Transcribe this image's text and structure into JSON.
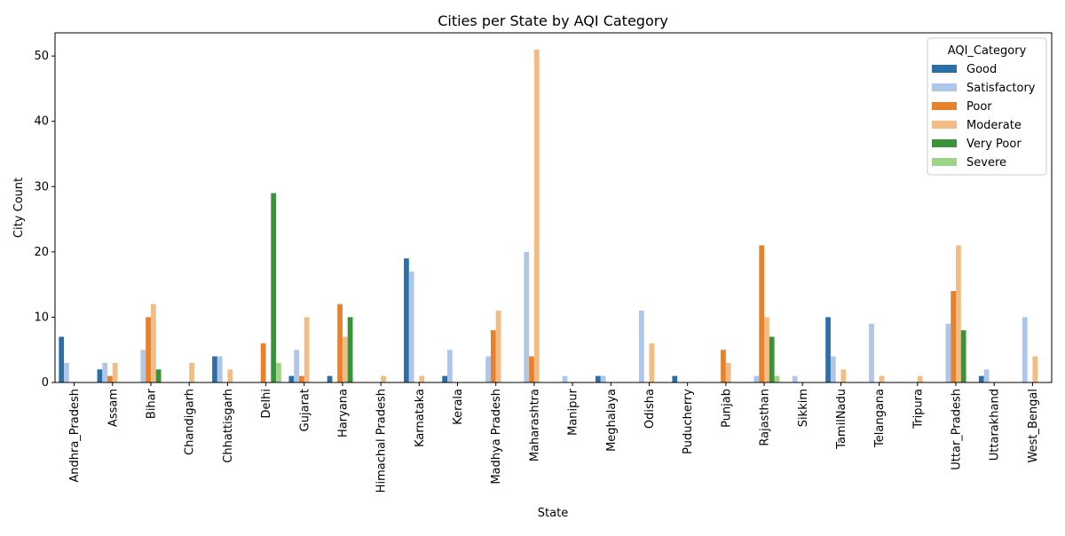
{
  "chart_data": {
    "type": "bar",
    "title": "Cities per State by AQI Category",
    "xlabel": "State",
    "ylabel": "City Count",
    "ylim": [
      0,
      53.55
    ],
    "yticks": [
      0,
      10,
      20,
      30,
      40,
      50
    ],
    "grid": false,
    "legend": {
      "title": "AQI_Category",
      "position": "top-right"
    },
    "categories": [
      "Andhra_Pradesh",
      "Assam",
      "Bihar",
      "Chandigarh",
      "Chhattisgarh",
      "Delhi",
      "Gujarat",
      "Haryana",
      "Himachal Pradesh",
      "Karnataka",
      "Kerala",
      "Madhya Pradesh",
      "Maharashtra",
      "Manipur",
      "Meghalaya",
      "Odisha",
      "Puducherry",
      "Punjab",
      "Rajasthan",
      "Sikkim",
      "TamilNadu",
      "Telangana",
      "Tripura",
      "Uttar_Pradesh",
      "Uttarakhand",
      "West_Bengal"
    ],
    "series": [
      {
        "name": "Good",
        "color": "#2c6fa6",
        "values": [
          7,
          2,
          0,
          0,
          4,
          0,
          1,
          1,
          0,
          19,
          1,
          0,
          0,
          0,
          1,
          0,
          1,
          0,
          0,
          0,
          10,
          0,
          0,
          0,
          1,
          0
        ]
      },
      {
        "name": "Satisfactory",
        "color": "#aec7e8",
        "values": [
          3,
          3,
          5,
          0,
          4,
          0,
          5,
          0,
          0,
          17,
          5,
          4,
          20,
          1,
          1,
          11,
          0,
          0,
          1,
          1,
          4,
          9,
          0,
          9,
          2,
          10
        ]
      },
      {
        "name": "Poor",
        "color": "#e8812c",
        "values": [
          0,
          1,
          10,
          0,
          0,
          6,
          1,
          12,
          0,
          0,
          0,
          8,
          4,
          0,
          0,
          0,
          0,
          5,
          21,
          0,
          0,
          0,
          0,
          14,
          0,
          0
        ]
      },
      {
        "name": "Moderate",
        "color": "#f4bc85",
        "values": [
          0,
          3,
          12,
          3,
          2,
          0,
          10,
          7,
          1,
          1,
          0,
          11,
          51,
          0,
          0,
          6,
          0,
          3,
          10,
          0,
          2,
          1,
          1,
          21,
          0,
          4
        ]
      },
      {
        "name": "Very Poor",
        "color": "#3a923a",
        "values": [
          0,
          0,
          2,
          0,
          0,
          29,
          0,
          10,
          0,
          0,
          0,
          0,
          0,
          0,
          0,
          0,
          0,
          0,
          7,
          0,
          0,
          0,
          0,
          8,
          0,
          0
        ]
      },
      {
        "name": "Severe",
        "color": "#9ed48a",
        "values": [
          0,
          0,
          0,
          0,
          0,
          3,
          0,
          0,
          0,
          0,
          0,
          0,
          0,
          0,
          0,
          0,
          0,
          0,
          1,
          0,
          0,
          0,
          0,
          0,
          0,
          0
        ]
      }
    ]
  }
}
